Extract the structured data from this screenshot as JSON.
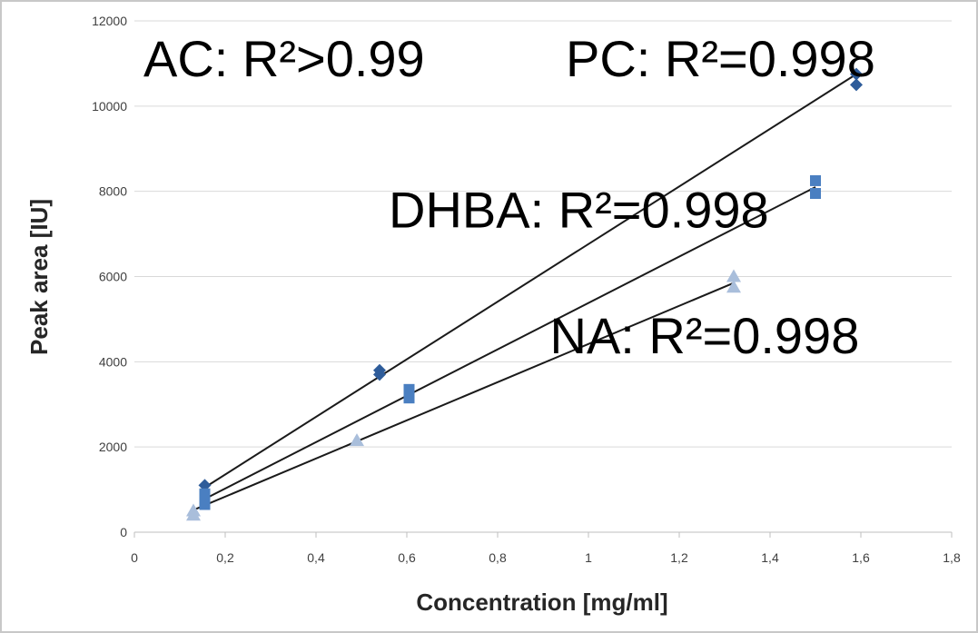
{
  "chart_data": {
    "type": "scatter",
    "xlabel": "Concentration [mg/ml]",
    "ylabel": "Peak area [IU]",
    "xlim": [
      0,
      1.8
    ],
    "ylim": [
      0,
      12000
    ],
    "x_ticks": [
      0,
      0.2,
      0.4,
      0.6,
      0.8,
      1,
      1.2,
      1.4,
      1.6,
      1.8
    ],
    "x_tick_labels": [
      "0",
      "0,2",
      "0,4",
      "0,6",
      "0,8",
      "1",
      "1,2",
      "1,4",
      "1,6",
      "1,8"
    ],
    "y_ticks": [
      0,
      2000,
      4000,
      6000,
      8000,
      10000,
      12000
    ],
    "y_tick_labels": [
      "0",
      "2000",
      "4000",
      "6000",
      "8000",
      "10000",
      "12000"
    ],
    "grid": true,
    "series": [
      {
        "marker": "diamond",
        "color": "#2e5c9a",
        "points": [
          [
            0.155,
            1100
          ],
          [
            0.54,
            3800
          ],
          [
            0.54,
            3700
          ],
          [
            1.59,
            10500
          ],
          [
            1.59,
            10750
          ]
        ],
        "fit": [
          [
            0.155,
            1050
          ],
          [
            1.59,
            10750
          ]
        ]
      },
      {
        "marker": "square",
        "color": "#4a7fc1",
        "points": [
          [
            0.155,
            900
          ],
          [
            0.155,
            650
          ],
          [
            0.605,
            3350
          ],
          [
            0.605,
            3150
          ],
          [
            1.5,
            8250
          ],
          [
            1.5,
            7950
          ]
        ],
        "fit": [
          [
            0.155,
            780
          ],
          [
            1.5,
            8100
          ]
        ]
      },
      {
        "marker": "triangle",
        "color": "#a9bedb",
        "points": [
          [
            0.13,
            500
          ],
          [
            0.13,
            400
          ],
          [
            0.49,
            2150
          ],
          [
            1.32,
            6000
          ],
          [
            1.32,
            5750
          ]
        ],
        "fit": [
          [
            0.13,
            520
          ],
          [
            1.32,
            5850
          ]
        ]
      }
    ],
    "annotations": [
      {
        "text": "AC: R²>0.99",
        "x": 0.02,
        "y": 10700
      },
      {
        "text": "PC: R²=0.998",
        "x": 0.95,
        "y": 10700
      },
      {
        "text": "DHBA: R²=0.998",
        "x": 0.56,
        "y": 7150
      },
      {
        "text": "NA: R²=0.998",
        "x": 0.915,
        "y": 4200
      }
    ]
  }
}
